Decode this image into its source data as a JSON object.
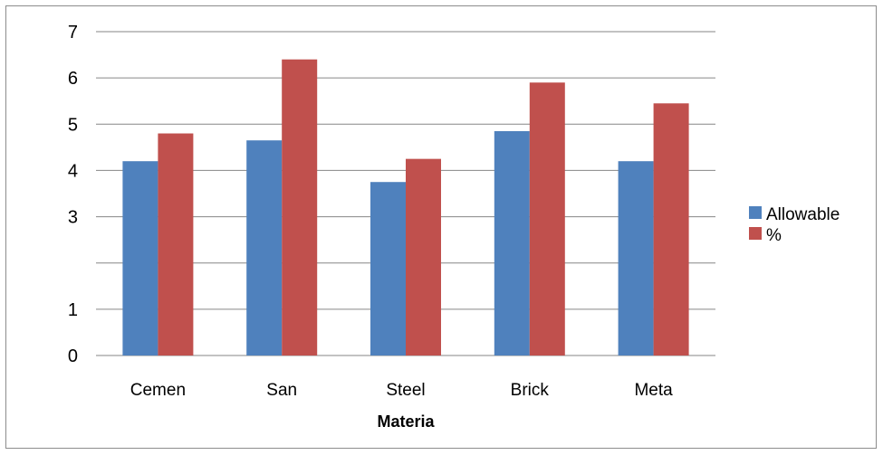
{
  "chart_data": {
    "type": "bar",
    "categories": [
      "Cemen",
      "San",
      "Steel",
      "Brick",
      "Meta"
    ],
    "series": [
      {
        "name": "Allowable",
        "values": [
          4.2,
          4.65,
          3.75,
          4.85,
          4.2
        ],
        "color": "#4F81BD"
      },
      {
        "name": "%",
        "values": [
          4.8,
          6.4,
          4.25,
          5.9,
          5.45
        ],
        "color": "#C0504D"
      }
    ],
    "ylim": [
      0,
      7
    ],
    "y_ticks": [
      {
        "value": 0,
        "label": "0"
      },
      {
        "value": 1,
        "label": "1"
      },
      {
        "value": 2,
        "label": ""
      },
      {
        "value": 3,
        "label": "3"
      },
      {
        "value": 4,
        "label": "4"
      },
      {
        "value": 5,
        "label": "5"
      },
      {
        "value": 6,
        "label": "6"
      },
      {
        "value": 7,
        "label": "7"
      }
    ],
    "xlabel": "Materia",
    "ylabel": "",
    "title": "",
    "grid": true,
    "legend_position": "right"
  }
}
